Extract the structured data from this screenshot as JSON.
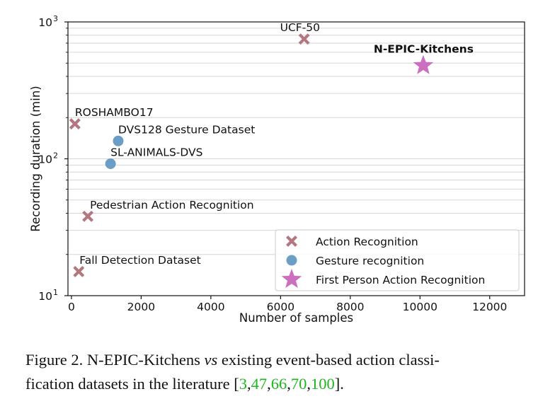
{
  "chart_data": {
    "type": "scatter",
    "xlabel": "Number of samples",
    "ylabel": "Recording duration (min)",
    "xlim": [
      -100,
      13000
    ],
    "ylim": [
      10,
      1000
    ],
    "y_scale": "log",
    "x_ticks": [
      0,
      2000,
      4000,
      6000,
      8000,
      10000,
      12000
    ],
    "x_tick_labels": [
      "0",
      "2000",
      "4000",
      "6000",
      "8000",
      "10000",
      "12000"
    ],
    "y_ticks": [
      10,
      100,
      1000
    ],
    "y_tick_labels": [
      "10",
      "10",
      "10"
    ],
    "y_tick_exponents": [
      "1",
      "2",
      "3"
    ],
    "grid": "horizontal",
    "legend_position": "lower-right",
    "series": [
      {
        "name": "Action Recognition",
        "marker": "x",
        "color": "#b5777f",
        "points": [
          {
            "label": "UCF-50",
            "x": 6676,
            "y": 750
          },
          {
            "label": "ROSHAMBO17",
            "x": 100,
            "y": 180
          },
          {
            "label": "Pedestrian Action Recognition",
            "x": 470,
            "y": 38
          },
          {
            "label": "Fall Detection Dataset",
            "x": 210,
            "y": 15
          }
        ]
      },
      {
        "name": "Gesture recognition",
        "marker": "circle",
        "color": "#6a9ec6",
        "points": [
          {
            "label": "DVS128 Gesture Dataset",
            "x": 1342,
            "y": 135
          },
          {
            "label": "SL-ANIMALS-DVS",
            "x": 1121,
            "y": 92
          }
        ]
      },
      {
        "name": "First Person Action Recognition",
        "marker": "star",
        "color": "#cc6fbf",
        "points": [
          {
            "label": "N-EPIC-Kitchens",
            "x": 10094,
            "y": 480,
            "label_bold": true
          }
        ]
      }
    ]
  },
  "caption": {
    "figure_label": "Figure 2.",
    "text_before": "N-EPIC-Kitchens",
    "vs": "vs",
    "text_after": "existing event-based action classi-",
    "line2_before": "fication datasets in the literature [",
    "refs": [
      "3",
      "47",
      "66",
      "70",
      "100"
    ],
    "line2_after": "]."
  }
}
